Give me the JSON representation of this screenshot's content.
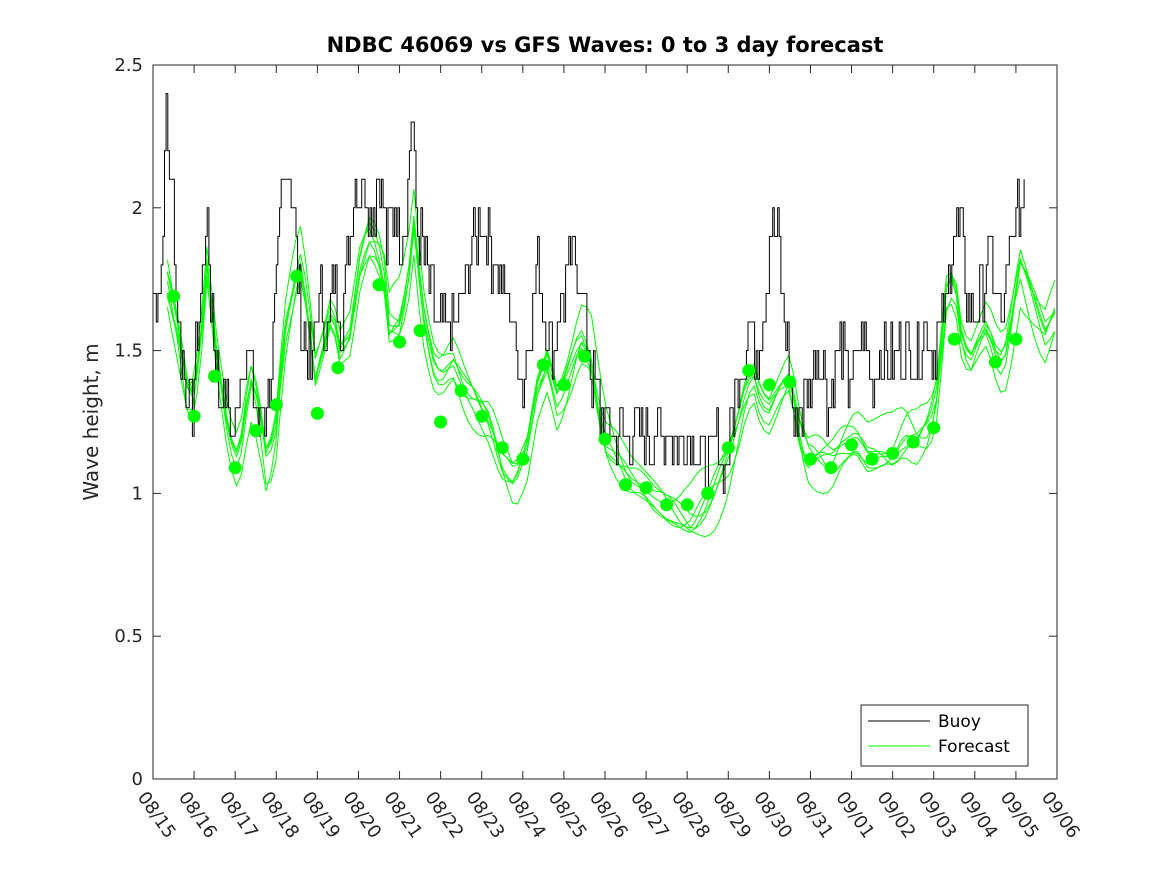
{
  "chart_data": {
    "type": "line",
    "title": "NDBC 46069 vs GFS Waves: 0 to 3 day forecast",
    "xlabel": "",
    "ylabel": "Wave height, m",
    "ylim": [
      0,
      2.5
    ],
    "xlim_days": [
      0,
      22
    ],
    "yticks": [
      "0",
      "0.5",
      "1",
      "1.5",
      "2",
      "2.5"
    ],
    "xticks": [
      "08/15",
      "08/16",
      "08/17",
      "08/18",
      "08/19",
      "08/20",
      "08/21",
      "08/22",
      "08/23",
      "08/24",
      "08/25",
      "08/26",
      "08/27",
      "08/28",
      "08/29",
      "08/30",
      "08/31",
      "09/01",
      "09/02",
      "09/03",
      "09/04",
      "09/05",
      "09/06"
    ],
    "legend": {
      "position": "bottom-right",
      "entries": [
        "Buoy",
        "Forecast"
      ]
    },
    "colors": {
      "buoy": "#000000",
      "forecast": "#00ff00"
    },
    "buoy_anchors": [
      [
        0,
        1.75
      ],
      [
        0.1,
        1.7
      ],
      [
        0.2,
        1.8
      ],
      [
        0.25,
        2.0
      ],
      [
        0.3,
        2.2
      ],
      [
        0.33,
        2.4
      ],
      [
        0.37,
        2.15
      ],
      [
        0.5,
        2.0
      ],
      [
        0.55,
        1.75
      ],
      [
        0.65,
        1.55
      ],
      [
        0.8,
        1.4
      ],
      [
        0.95,
        1.25
      ],
      [
        1.05,
        1.5
      ],
      [
        1.2,
        1.8
      ],
      [
        1.3,
        2.0
      ],
      [
        1.4,
        1.7
      ],
      [
        1.5,
        1.55
      ],
      [
        1.6,
        1.35
      ],
      [
        1.75,
        1.35
      ],
      [
        1.9,
        1.2
      ],
      [
        2.0,
        1.25
      ],
      [
        2.1,
        1.4
      ],
      [
        2.2,
        1.5
      ],
      [
        2.35,
        1.45
      ],
      [
        2.45,
        1.3
      ],
      [
        2.6,
        1.25
      ],
      [
        2.75,
        1.3
      ],
      [
        2.9,
        1.5
      ],
      [
        3.05,
        1.85
      ],
      [
        3.15,
        2.1
      ],
      [
        3.3,
        2.2
      ],
      [
        3.4,
        2.0
      ],
      [
        3.5,
        1.8
      ],
      [
        3.6,
        1.6
      ],
      [
        3.75,
        1.5
      ],
      [
        3.85,
        1.4
      ],
      [
        3.95,
        1.6
      ],
      [
        4.1,
        1.7
      ],
      [
        4.25,
        1.55
      ],
      [
        4.4,
        1.75
      ],
      [
        4.6,
        1.6
      ],
      [
        4.75,
        1.9
      ],
      [
        4.9,
        2.05
      ],
      [
        5.1,
        2.1
      ],
      [
        5.3,
        1.95
      ],
      [
        5.5,
        2.1
      ],
      [
        5.7,
        1.85
      ],
      [
        5.85,
        2.0
      ],
      [
        6.05,
        1.9
      ],
      [
        6.2,
        2.05
      ],
      [
        6.3,
        2.4
      ],
      [
        6.4,
        1.95
      ],
      [
        6.55,
        1.85
      ],
      [
        6.7,
        1.75
      ],
      [
        6.9,
        1.6
      ],
      [
        7.1,
        1.55
      ],
      [
        7.35,
        1.6
      ],
      [
        7.6,
        1.75
      ],
      [
        7.8,
        1.9
      ],
      [
        8.0,
        1.95
      ],
      [
        8.2,
        1.85
      ],
      [
        8.4,
        1.8
      ],
      [
        8.55,
        1.7
      ],
      [
        8.75,
        1.6
      ],
      [
        8.9,
        1.45
      ],
      [
        9.0,
        1.35
      ],
      [
        9.15,
        1.55
      ],
      [
        9.35,
        1.8
      ],
      [
        9.5,
        1.65
      ],
      [
        9.7,
        1.5
      ],
      [
        9.85,
        1.6
      ],
      [
        10.0,
        1.7
      ],
      [
        10.2,
        1.85
      ],
      [
        10.4,
        1.75
      ],
      [
        10.55,
        1.55
      ],
      [
        10.7,
        1.4
      ],
      [
        10.85,
        1.3
      ],
      [
        11.0,
        1.25
      ],
      [
        11.2,
        1.2
      ],
      [
        11.4,
        1.25
      ],
      [
        11.6,
        1.2
      ],
      [
        11.8,
        1.25
      ],
      [
        12.0,
        1.2
      ],
      [
        12.25,
        1.2
      ],
      [
        12.5,
        1.25
      ],
      [
        12.75,
        1.15
      ],
      [
        13.0,
        1.2
      ],
      [
        13.25,
        1.15
      ],
      [
        13.5,
        1.1
      ],
      [
        13.75,
        1.2
      ],
      [
        13.9,
        1.05
      ],
      [
        14.05,
        1.25
      ],
      [
        14.25,
        1.4
      ],
      [
        14.5,
        1.6
      ],
      [
        14.7,
        1.5
      ],
      [
        14.9,
        1.75
      ],
      [
        15.05,
        1.95
      ],
      [
        15.2,
        1.9
      ],
      [
        15.35,
        1.6
      ],
      [
        15.5,
        1.45
      ],
      [
        15.6,
        1.25
      ],
      [
        15.75,
        1.3
      ],
      [
        16.0,
        1.35
      ],
      [
        16.15,
        1.5
      ],
      [
        16.3,
        1.45
      ],
      [
        16.45,
        1.3
      ],
      [
        16.6,
        1.45
      ],
      [
        16.75,
        1.55
      ],
      [
        16.9,
        1.4
      ],
      [
        17.1,
        1.45
      ],
      [
        17.3,
        1.55
      ],
      [
        17.5,
        1.4
      ],
      [
        17.75,
        1.5
      ],
      [
        18.0,
        1.45
      ],
      [
        18.2,
        1.5
      ],
      [
        18.4,
        1.5
      ],
      [
        18.6,
        1.45
      ],
      [
        18.8,
        1.6
      ],
      [
        18.95,
        1.5
      ],
      [
        19.1,
        1.55
      ],
      [
        19.3,
        1.65
      ],
      [
        19.5,
        1.95
      ],
      [
        19.7,
        1.9
      ],
      [
        19.85,
        1.6
      ],
      [
        20.0,
        1.6
      ],
      [
        20.2,
        1.75
      ],
      [
        20.35,
        1.85
      ],
      [
        20.5,
        1.7
      ],
      [
        20.65,
        1.6
      ],
      [
        20.8,
        1.75
      ],
      [
        20.95,
        1.95
      ],
      [
        21.1,
        2.0
      ],
      [
        21.2,
        2.1
      ]
    ],
    "forecast_dots": [
      [
        0.5,
        1.69
      ],
      [
        1.0,
        1.27
      ],
      [
        1.5,
        1.41
      ],
      [
        2.0,
        1.09
      ],
      [
        2.5,
        1.22
      ],
      [
        3.0,
        1.31
      ],
      [
        3.5,
        1.76
      ],
      [
        4.0,
        1.28
      ],
      [
        4.5,
        1.44
      ],
      [
        5.5,
        1.73
      ],
      [
        6.0,
        1.53
      ],
      [
        6.5,
        1.57
      ],
      [
        7.0,
        1.25
      ],
      [
        7.5,
        1.36
      ],
      [
        8.0,
        1.27
      ],
      [
        8.5,
        1.16
      ],
      [
        9.0,
        1.12
      ],
      [
        9.5,
        1.45
      ],
      [
        10.0,
        1.38
      ],
      [
        10.5,
        1.48
      ],
      [
        11.0,
        1.19
      ],
      [
        11.5,
        1.03
      ],
      [
        12.0,
        1.02
      ],
      [
        12.5,
        0.96
      ],
      [
        13.0,
        0.96
      ],
      [
        13.5,
        1.0
      ],
      [
        14.0,
        1.16
      ],
      [
        14.5,
        1.43
      ],
      [
        15.0,
        1.38
      ],
      [
        15.5,
        1.39
      ],
      [
        16.0,
        1.12
      ],
      [
        16.5,
        1.09
      ],
      [
        17.0,
        1.17
      ],
      [
        17.5,
        1.12
      ],
      [
        18.0,
        1.14
      ],
      [
        18.5,
        1.18
      ],
      [
        19.0,
        1.23
      ],
      [
        19.5,
        1.54
      ],
      [
        20.5,
        1.46
      ],
      [
        21.0,
        1.54
      ]
    ],
    "forecast_anchors": [
      [
        0.35,
        1.72
      ],
      [
        0.6,
        1.55
      ],
      [
        0.9,
        1.3
      ],
      [
        1.15,
        1.5
      ],
      [
        1.3,
        1.82
      ],
      [
        1.55,
        1.5
      ],
      [
        1.8,
        1.25
      ],
      [
        2.0,
        1.12
      ],
      [
        2.2,
        1.2
      ],
      [
        2.35,
        1.4
      ],
      [
        2.55,
        1.3
      ],
      [
        2.75,
        1.1
      ],
      [
        2.95,
        1.15
      ],
      [
        3.2,
        1.55
      ],
      [
        3.45,
        1.75
      ],
      [
        3.6,
        1.82
      ],
      [
        3.75,
        1.68
      ],
      [
        3.95,
        1.42
      ],
      [
        4.15,
        1.52
      ],
      [
        4.35,
        1.65
      ],
      [
        4.55,
        1.5
      ],
      [
        4.8,
        1.55
      ],
      [
        5.05,
        1.8
      ],
      [
        5.3,
        1.9
      ],
      [
        5.6,
        1.8
      ],
      [
        5.75,
        1.6
      ],
      [
        6.0,
        1.62
      ],
      [
        6.2,
        1.75
      ],
      [
        6.35,
        1.95
      ],
      [
        6.55,
        1.65
      ],
      [
        6.8,
        1.45
      ],
      [
        7.0,
        1.4
      ],
      [
        7.3,
        1.45
      ],
      [
        7.6,
        1.35
      ],
      [
        7.9,
        1.3
      ],
      [
        8.2,
        1.25
      ],
      [
        8.5,
        1.12
      ],
      [
        8.8,
        1.05
      ],
      [
        9.1,
        1.15
      ],
      [
        9.35,
        1.35
      ],
      [
        9.6,
        1.45
      ],
      [
        9.85,
        1.3
      ],
      [
        10.1,
        1.4
      ],
      [
        10.4,
        1.55
      ],
      [
        10.65,
        1.5
      ],
      [
        10.85,
        1.3
      ],
      [
        11.0,
        1.2
      ],
      [
        11.3,
        1.12
      ],
      [
        11.6,
        1.05
      ],
      [
        11.9,
        1.02
      ],
      [
        12.2,
        0.98
      ],
      [
        12.5,
        0.95
      ],
      [
        12.8,
        0.93
      ],
      [
        13.1,
        0.92
      ],
      [
        13.4,
        0.96
      ],
      [
        13.7,
        1.02
      ],
      [
        14.0,
        1.1
      ],
      [
        14.2,
        1.2
      ],
      [
        14.4,
        1.32
      ],
      [
        14.6,
        1.4
      ],
      [
        14.8,
        1.3
      ],
      [
        15.0,
        1.28
      ],
      [
        15.3,
        1.38
      ],
      [
        15.5,
        1.42
      ],
      [
        15.7,
        1.25
      ],
      [
        15.9,
        1.13
      ],
      [
        16.2,
        1.12
      ],
      [
        16.5,
        1.1
      ],
      [
        16.8,
        1.16
      ],
      [
        17.1,
        1.2
      ],
      [
        17.4,
        1.14
      ],
      [
        17.7,
        1.15
      ],
      [
        18.0,
        1.15
      ],
      [
        18.3,
        1.2
      ],
      [
        18.6,
        1.18
      ],
      [
        18.9,
        1.22
      ],
      [
        19.1,
        1.35
      ],
      [
        19.3,
        1.7
      ],
      [
        19.5,
        1.75
      ],
      [
        19.7,
        1.52
      ],
      [
        19.9,
        1.48
      ],
      [
        20.1,
        1.55
      ],
      [
        20.3,
        1.6
      ],
      [
        20.5,
        1.5
      ],
      [
        20.7,
        1.45
      ],
      [
        20.9,
        1.6
      ],
      [
        21.1,
        1.78
      ],
      [
        21.3,
        1.7
      ],
      [
        21.5,
        1.62
      ],
      [
        21.7,
        1.55
      ],
      [
        22.0,
        1.65
      ]
    ],
    "forecast_offsets": [
      0,
      0.06,
      -0.05,
      0.1,
      -0.09,
      0.03,
      -0.03
    ]
  }
}
